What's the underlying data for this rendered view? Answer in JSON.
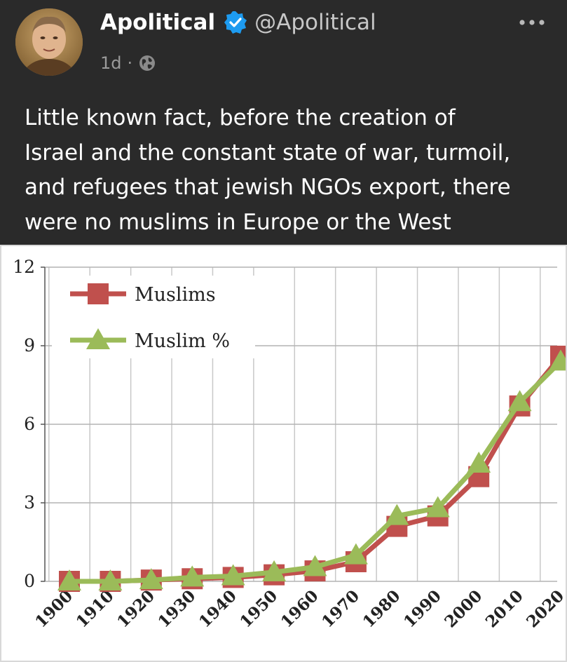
{
  "post": {
    "author_name": "Apolitical",
    "author_handle": "@Apolitical",
    "age": "1d",
    "separator": "·",
    "visibility_icon": "globe-icon",
    "verified_icon": "verified-badge-icon",
    "more_icon": "more-horizontal-icon",
    "text_lines": [
      "Little known fact, before the creation of",
      "Israel and the constant state of war, turmoil,",
      "and refugees that jewish NGOs export, there",
      "were no muslims in Europe or the West"
    ]
  },
  "colors": {
    "background": "#2a2a2a",
    "verified": "#1d9bf0",
    "muslims_series": "#c0504d",
    "muslim_pct_series": "#9bbb59"
  },
  "chart_data": {
    "type": "line",
    "x": [
      1900,
      1910,
      1920,
      1930,
      1940,
      1950,
      1960,
      1970,
      1980,
      1990,
      2000,
      2010,
      2020
    ],
    "x_tick_labels": [
      "1900",
      "1910",
      "1920",
      "1930",
      "1940",
      "1950",
      "1960",
      "1970",
      "1980",
      "1990",
      "2000",
      "2010",
      "2020"
    ],
    "y_ticks": [
      0,
      3,
      6,
      9,
      12
    ],
    "y_tick_labels": [
      "0",
      "3",
      "6",
      "9",
      "12"
    ],
    "ylim": [
      0,
      12
    ],
    "grid": true,
    "legend_position": "top-left",
    "series": [
      {
        "name": "Muslims",
        "marker": "square",
        "color": "#c0504d",
        "values": [
          0.0,
          0.0,
          0.05,
          0.1,
          0.15,
          0.25,
          0.4,
          0.75,
          2.1,
          2.5,
          4.0,
          6.7,
          8.6
        ]
      },
      {
        "name": "Muslim %",
        "marker": "triangle",
        "color": "#9bbb59",
        "values": [
          0.0,
          0.0,
          0.05,
          0.15,
          0.2,
          0.35,
          0.55,
          1.0,
          2.5,
          2.8,
          4.5,
          6.85,
          8.4
        ]
      }
    ],
    "title": "",
    "xlabel": "",
    "ylabel": ""
  }
}
